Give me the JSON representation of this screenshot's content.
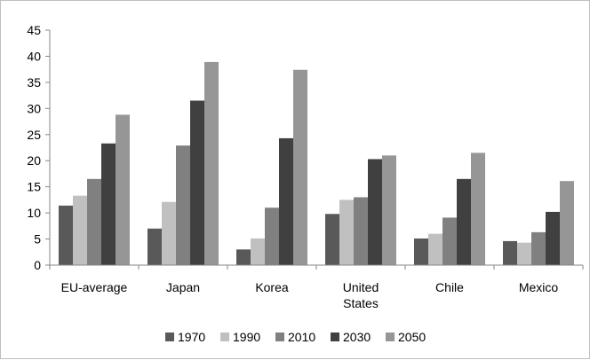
{
  "chart_data": {
    "type": "bar",
    "title": "",
    "xlabel": "",
    "ylabel": "",
    "categories": [
      [
        "EU-average"
      ],
      [
        "Japan"
      ],
      [
        "Korea"
      ],
      [
        "United",
        "States"
      ],
      [
        "Chile"
      ],
      [
        "Mexico"
      ]
    ],
    "series": [
      {
        "name": "1970",
        "color": "#595959",
        "values": [
          11.4,
          7.0,
          3.0,
          9.8,
          5.1,
          4.6
        ]
      },
      {
        "name": "1990",
        "color": "#c0c0c0",
        "values": [
          13.3,
          12.1,
          5.1,
          12.5,
          6.0,
          4.3
        ]
      },
      {
        "name": "2010",
        "color": "#808080",
        "values": [
          16.5,
          22.9,
          11.0,
          13.0,
          9.1,
          6.3
        ]
      },
      {
        "name": "2030",
        "color": "#404040",
        "values": [
          23.3,
          31.5,
          24.3,
          20.3,
          16.5,
          10.2
        ]
      },
      {
        "name": "2050",
        "color": "#969696",
        "values": [
          28.8,
          38.9,
          37.4,
          21.0,
          21.5,
          16.1
        ]
      }
    ],
    "ylim": [
      0,
      45
    ],
    "yticks": [
      0,
      5,
      10,
      15,
      20,
      25,
      30,
      35,
      40,
      45
    ],
    "grid": false,
    "legend_position": "bottom"
  }
}
